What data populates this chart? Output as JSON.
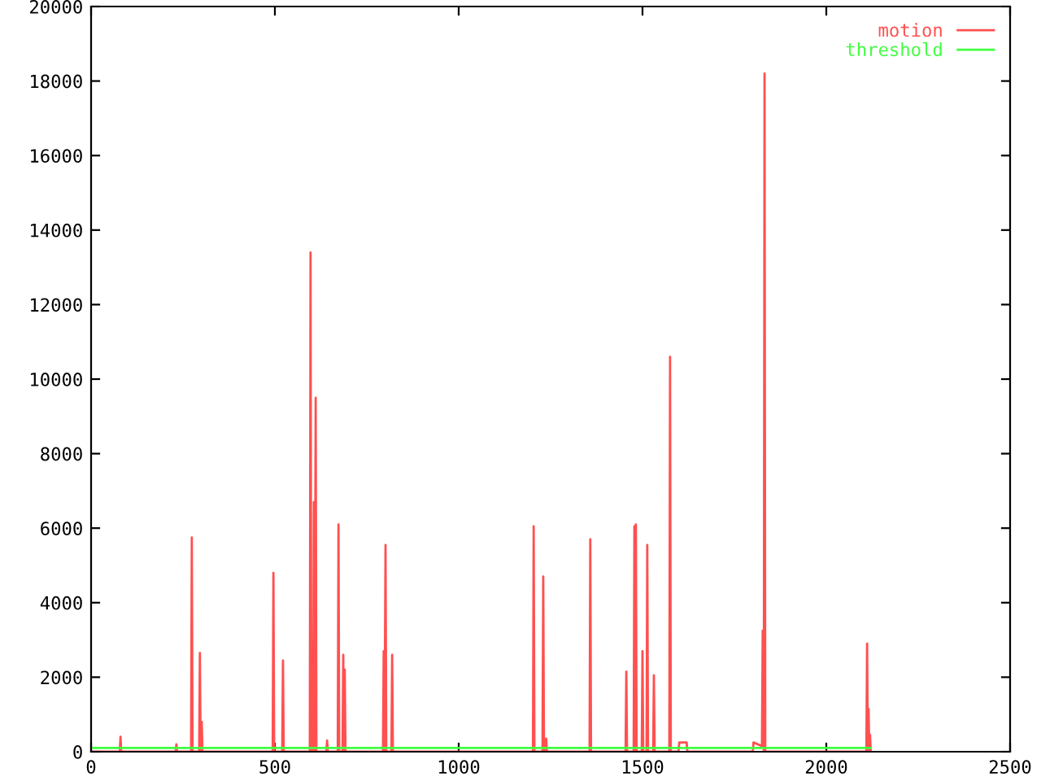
{
  "chart_data": {
    "type": "line",
    "xlim": [
      0,
      2500
    ],
    "ylim": [
      0,
      20000
    ],
    "xticks": [
      0,
      500,
      1000,
      1500,
      2000,
      2500
    ],
    "yticks": [
      0,
      2000,
      4000,
      6000,
      8000,
      10000,
      12000,
      14000,
      16000,
      18000,
      20000
    ],
    "grid": false,
    "legend": "top right",
    "marker": "none",
    "line_style": "solid",
    "series": [
      {
        "name": "motion",
        "color": "#ff5050",
        "x": [
          0,
          78,
          80,
          82,
          230,
          232,
          234,
          272,
          274,
          276,
          294,
          296,
          298,
          301,
          303,
          494,
          496,
          498,
          520,
          522,
          524,
          595,
          597,
          599,
          604,
          606,
          608,
          611,
          613,
          640,
          642,
          644,
          671,
          673,
          675,
          684,
          686,
          688,
          690,
          692,
          794,
          796,
          798,
          801,
          803,
          817,
          819,
          821,
          1202,
          1204,
          1206,
          1228,
          1230,
          1232,
          1236,
          1238,
          1240,
          1356,
          1358,
          1360,
          1454,
          1456,
          1458,
          1476,
          1478,
          1480,
          1482,
          1484,
          1498,
          1500,
          1502,
          1511,
          1513,
          1515,
          1529,
          1531,
          1533,
          1573,
          1575,
          1577,
          1598,
          1600,
          1620,
          1622,
          1800,
          1802,
          1825,
          1827,
          1830,
          1832,
          1834,
          2109,
          2111,
          2113,
          2115,
          2117,
          2119,
          2121
        ],
        "values": [
          0,
          0,
          400,
          0,
          0,
          200,
          0,
          0,
          5750,
          0,
          0,
          2650,
          0,
          800,
          0,
          0,
          4800,
          0,
          0,
          2450,
          0,
          0,
          13400,
          0,
          0,
          6700,
          0,
          9500,
          0,
          0,
          300,
          0,
          0,
          6100,
          0,
          0,
          2600,
          0,
          2200,
          0,
          0,
          2700,
          0,
          5550,
          0,
          0,
          2600,
          0,
          0,
          6050,
          0,
          0,
          4700,
          0,
          0,
          350,
          0,
          0,
          5700,
          0,
          0,
          2150,
          0,
          0,
          6050,
          0,
          6100,
          0,
          0,
          2700,
          0,
          0,
          5550,
          0,
          0,
          2050,
          0,
          0,
          10600,
          0,
          0,
          250,
          250,
          0,
          0,
          250,
          150,
          3250,
          0,
          18200,
          0,
          0,
          2900,
          0,
          1150,
          0,
          450,
          0
        ]
      },
      {
        "name": "threshold",
        "color": "#40ff40",
        "x": [
          0,
          2121
        ],
        "values": [
          100,
          100
        ]
      }
    ]
  }
}
